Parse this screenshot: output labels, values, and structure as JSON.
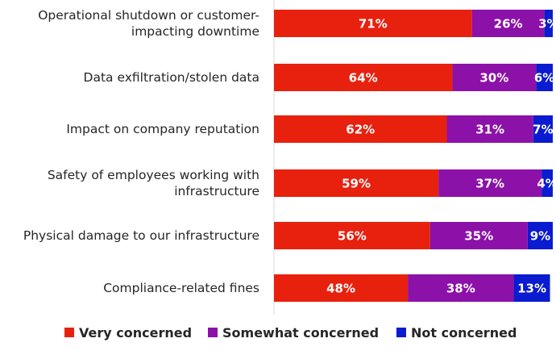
{
  "chart_data": {
    "type": "bar",
    "orientation": "horizontal",
    "stacked": true,
    "title": "",
    "xlabel": "",
    "ylabel": "",
    "xlim": [
      0,
      100
    ],
    "grid": false,
    "legend_position": "bottom",
    "categories": [
      [
        "Operational shutdown or customer-",
        "impacting downtime"
      ],
      [
        "Data exfiltration/stolen data"
      ],
      [
        "Impact on company reputation"
      ],
      [
        "Safety of employees working with",
        "infrastructure"
      ],
      [
        "Physical damage to our infrastructure"
      ],
      [
        "Compliance-related fines"
      ]
    ],
    "series": [
      {
        "name": "Very concerned",
        "color": "#e8210f",
        "values": [
          71,
          64,
          62,
          59,
          56,
          48
        ],
        "labels": [
          "71%",
          "64%",
          "62%",
          "59%",
          "56%",
          "48%"
        ]
      },
      {
        "name": "Somewhat concerned",
        "color": "#8c11a8",
        "values": [
          26,
          30,
          31,
          37,
          35,
          38
        ],
        "labels": [
          "26%",
          "30%",
          "31%",
          "37%",
          "35%",
          "38%"
        ]
      },
      {
        "name": "Not concerned",
        "color": "#0a1bd0",
        "values": [
          3,
          6,
          7,
          4,
          9,
          13
        ],
        "labels": [
          "3%",
          "6%",
          "7%",
          "4%",
          "9%",
          "13%"
        ]
      }
    ]
  }
}
